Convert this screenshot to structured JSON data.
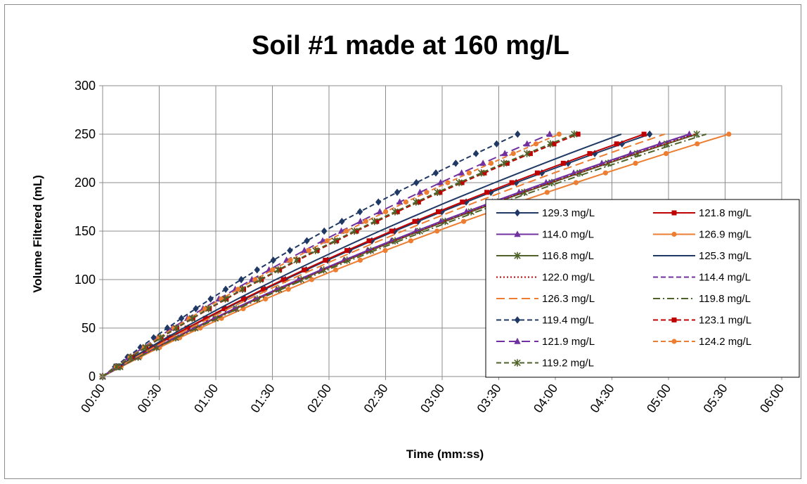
{
  "chart_data": {
    "type": "line",
    "title": "Soil #1  made at 160 mg/L",
    "xlabel": "Time (mm:ss)",
    "ylabel": "Volume Filtered (mL)",
    "xlim": [
      0,
      360
    ],
    "ylim": [
      0,
      300
    ],
    "x_ticks": [
      "00:00",
      "00:30",
      "01:00",
      "01:30",
      "02:00",
      "02:30",
      "03:00",
      "03:30",
      "04:00",
      "04:30",
      "05:00",
      "05:30",
      "06:00"
    ],
    "y_ticks": [
      "0",
      "50",
      "100",
      "150",
      "200",
      "250",
      "300"
    ],
    "grid": true,
    "legend_position": "right, inside plot",
    "volume_step_ml": 10,
    "series": [
      {
        "name": "129.3 mg/L",
        "color": "#1f3864",
        "dash": "solid",
        "marker": "diamond",
        "end_time_s": 290
      },
      {
        "name": "121.8 mg/L",
        "color": "#c00000",
        "dash": "solid",
        "marker": "square",
        "end_time_s": 287
      },
      {
        "name": "114.0 mg/L",
        "color": "#7030a0",
        "dash": "solid",
        "marker": "triangle",
        "end_time_s": 311
      },
      {
        "name": "126.9 mg/L",
        "color": "#ed7d31",
        "dash": "solid",
        "marker": "circle",
        "end_time_s": 332
      },
      {
        "name": "116.8 mg/L",
        "color": "#4f6228",
        "dash": "solid",
        "marker": "star",
        "end_time_s": 315
      },
      {
        "name": "125.3 mg/L",
        "color": "#1f3864",
        "dash": "solid",
        "marker": "none",
        "end_time_s": 275
      },
      {
        "name": "122.0 mg/L",
        "color": "#c00000",
        "dash": "dot",
        "marker": "none",
        "end_time_s": 314
      },
      {
        "name": "114.4 mg/L",
        "color": "#7030a0",
        "dash": "dash",
        "marker": "none",
        "end_time_s": 312
      },
      {
        "name": "126.3 mg/L",
        "color": "#ed7d31",
        "dash": "longdash",
        "marker": "none",
        "end_time_s": 298
      },
      {
        "name": "119.8 mg/L",
        "color": "#4f6228",
        "dash": "dashdot",
        "marker": "none",
        "end_time_s": 320
      },
      {
        "name": "119.4 mg/L",
        "color": "#1f3864",
        "dash": "dash",
        "marker": "diamond",
        "end_time_s": 220
      },
      {
        "name": "123.1 mg/L",
        "color": "#c00000",
        "dash": "dash",
        "marker": "square",
        "end_time_s": 252
      },
      {
        "name": "121.9 mg/L",
        "color": "#7030a0",
        "dash": "longdash",
        "marker": "triangle",
        "end_time_s": 237
      },
      {
        "name": "124.2 mg/L",
        "color": "#ed7d31",
        "dash": "dash",
        "marker": "circle",
        "end_time_s": 242
      },
      {
        "name": "119.2 mg/L",
        "color": "#4f6228",
        "dash": "dash",
        "marker": "star",
        "end_time_s": 250
      }
    ]
  }
}
